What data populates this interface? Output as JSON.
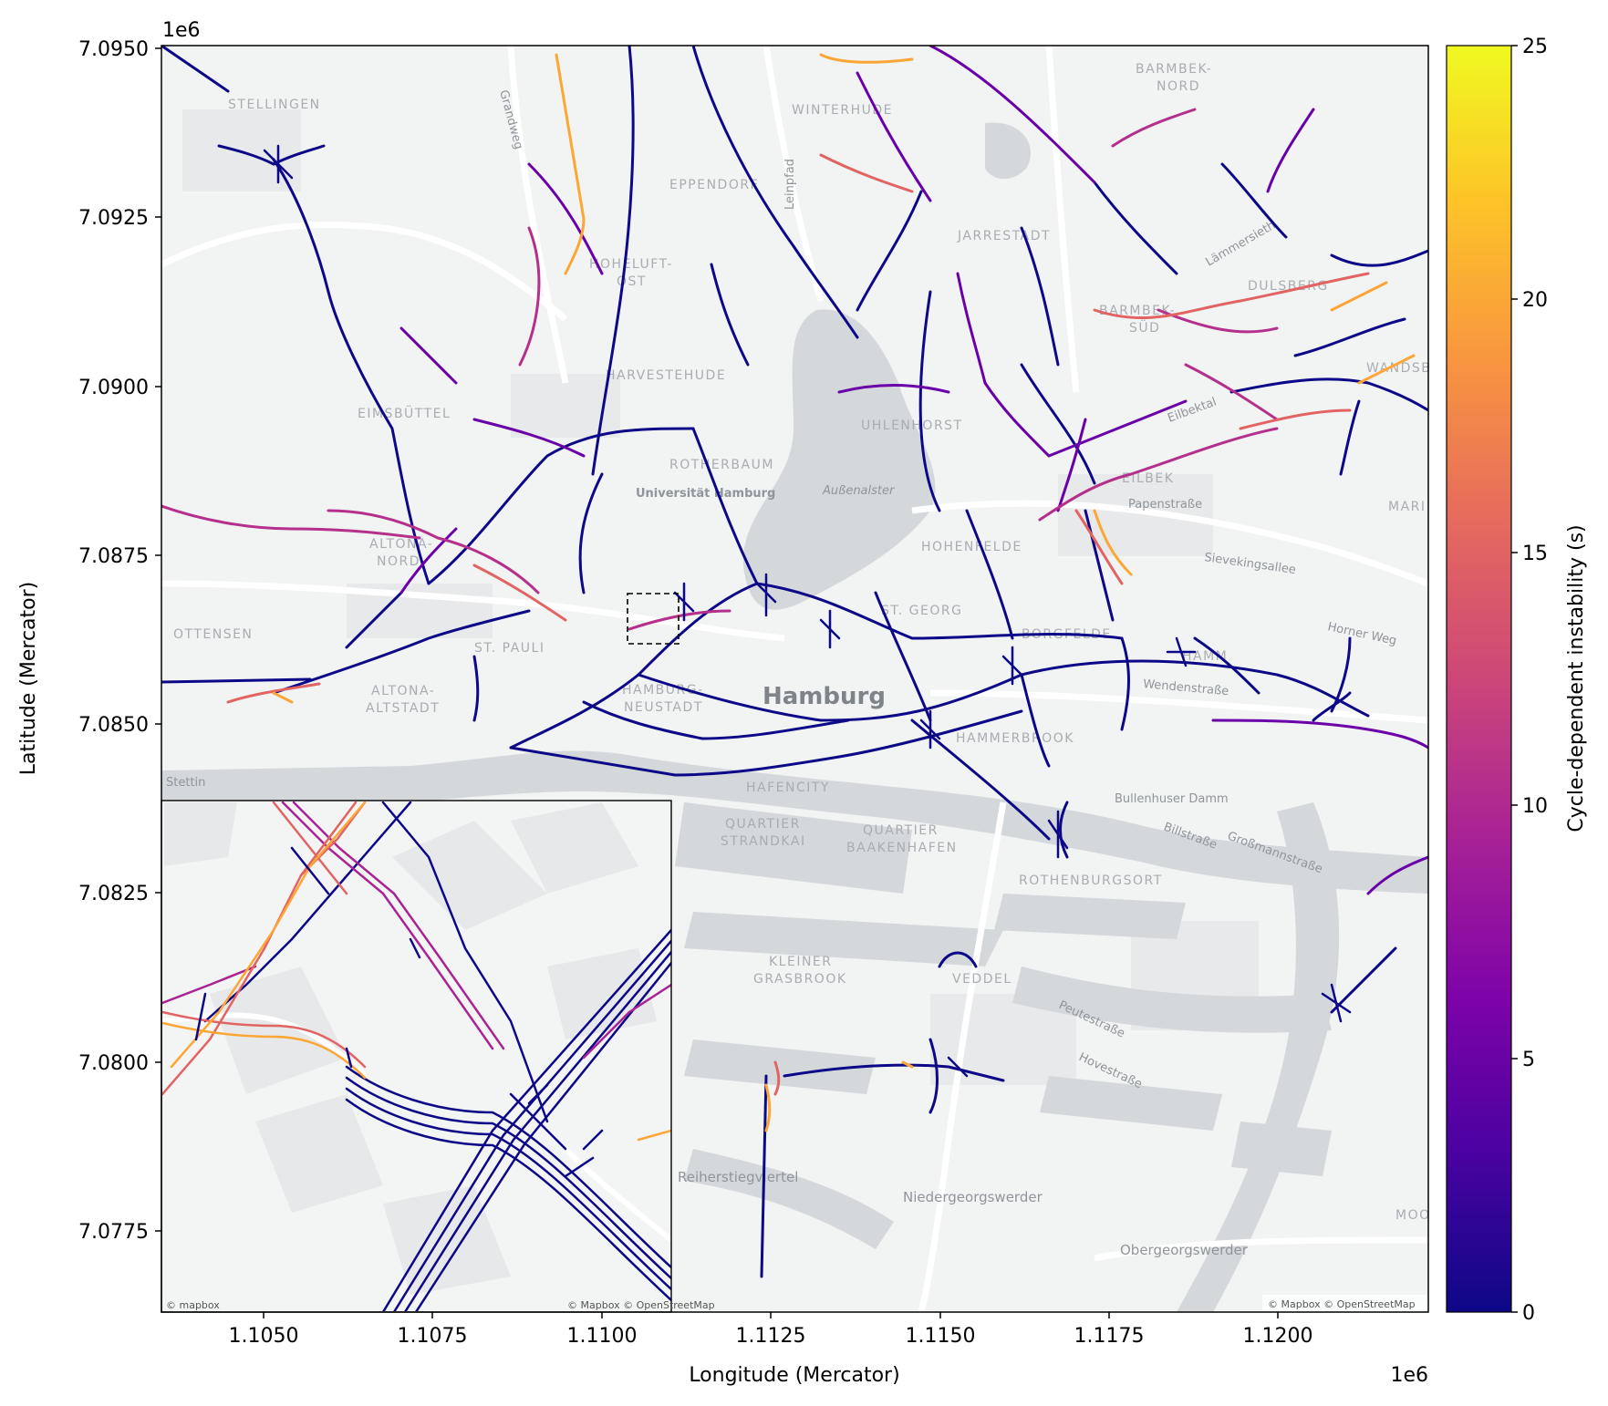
{
  "chart_data": {
    "type": "map",
    "xlabel": "Longitude (Mercator)",
    "ylabel": "Latitude (Mercator)",
    "x_offset_label": "1e6",
    "y_offset_label": "1e6",
    "x_ticks": [
      "1.1050",
      "1.1075",
      "1.1100",
      "1.1125",
      "1.1150",
      "1.1175",
      "1.1200"
    ],
    "y_ticks": [
      "7.0950",
      "7.0925",
      "7.0900",
      "7.0875",
      "7.0850",
      "7.0825",
      "7.0800",
      "7.0775"
    ],
    "colorbar": {
      "label": "Cycle-dependent instability (s)",
      "ticks": [
        "0",
        "5",
        "10",
        "15",
        "20",
        "25"
      ],
      "range": [
        0,
        25
      ],
      "colormap": "plasma"
    },
    "attribution": "© Mapbox © OpenStreetMap",
    "inset_attribution": [
      "© mapbox",
      "© Mapbox © OpenStreetMap"
    ],
    "inset": true
  },
  "map_labels": {
    "districts": [
      "STELLINGEN",
      "WINTERHUDE",
      "BARMBEK-",
      "NORD",
      "EPPENDORF",
      "JARRESTADT",
      "HOHELUFT-",
      "OST",
      "BARMBEK-",
      "SÜD",
      "DULSBERG",
      "HARVESTEHUDE",
      "EIMSBÜTTEL",
      "UHLENHORST",
      "ROTHERBAUM",
      "EILBEK",
      "ALTONA-",
      "NORD",
      "HOHENFELDE",
      "OTTENSEN",
      "ST. PAULI",
      "ST. GEORG",
      "BORGFELDE",
      "HAMM",
      "ALTONA-",
      "ALTSTADT",
      "HAMBURG-",
      "NEUSTADT",
      "HAMMERBROOK",
      "HAFENCITY",
      "QUARTIER",
      "STRANDKAI",
      "QUARTIER",
      "BAAKENHAFEN",
      "ROTHENBURGSORT",
      "KLEINER",
      "GRASBROOK",
      "VEDDEL",
      "MOO",
      "WANDSBEK",
      "MARI"
    ],
    "streets": [
      "Grandweg",
      "Leinpfad",
      "Lämmersieth",
      "Eilbektal",
      "Papenstraße",
      "Sievekingsallee",
      "Horner Weg",
      "Wendenstraße",
      "Bullenhuser Damm",
      "Billstraße",
      "Großmannstraße",
      "Peutestraße",
      "Hovestraße",
      "Reiherstiegviertel",
      "Niedergeorgswerder",
      "Obergeorgswerder",
      "Stettin"
    ],
    "places": [
      "Universität Hamburg",
      "Außenalster"
    ],
    "city": "Hamburg"
  }
}
